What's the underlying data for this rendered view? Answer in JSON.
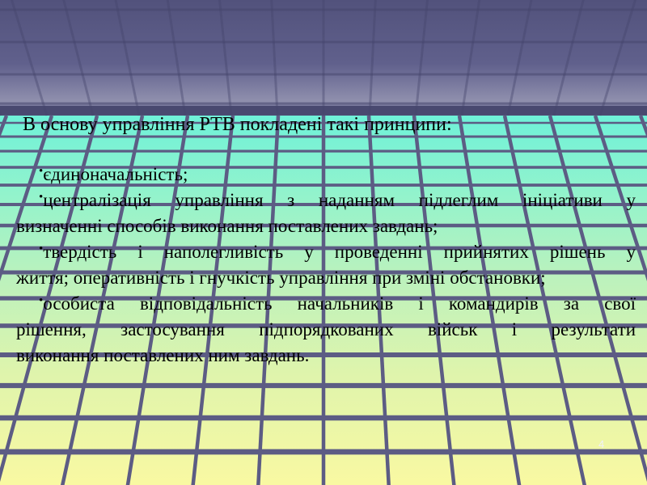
{
  "slide": {
    "title": "В основу управління РТВ покладені такі принципи:",
    "bullet_char": "•",
    "bullets": [
      {
        "lines": [
          "єдиноначальність;"
        ]
      },
      {
        "lines": [
          "централізація управління з наданням підлеглим ініціативи у",
          "визначенні способів виконання поставлених завдань;"
        ]
      },
      {
        "lines": [
          "твердість і наполегливість у проведенні прийнятих рішень у",
          "життя; оперативність і гнучкість управління при зміні обстановки;"
        ]
      },
      {
        "lines": [
          "особиста відповідальність начальників і командирів за свої",
          "рішення, застосування підпорядкованих військ і результати",
          "виконання поставлених ним завдань."
        ]
      }
    ],
    "page_number": "4"
  },
  "theme": {
    "sky_top": "#52527c",
    "sky_mid": "#60608c",
    "sky_light_band": "#9090ae",
    "sky_line": "#45456c",
    "horizon_band": "#494970",
    "floor_near_horizon": "#6ff1d8",
    "floor_green": "#bdf2bc",
    "floor_bottom": "#f9f9a2",
    "grid_line": "#5c5c84",
    "text_color": "#000000",
    "page_number_color": "#f0f0f8"
  }
}
